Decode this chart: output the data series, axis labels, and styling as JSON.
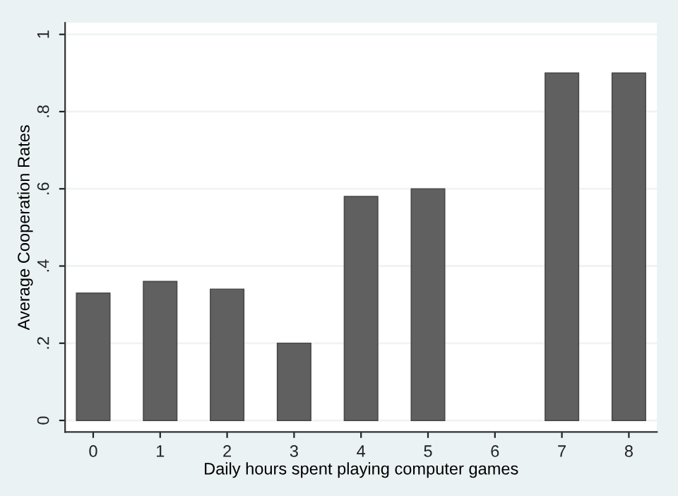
{
  "chart_data": {
    "type": "bar",
    "xlabel": "Daily hours spent playing computer games",
    "ylabel": "Average Cooperation Rates",
    "categories": [
      "0",
      "1",
      "2",
      "3",
      "4",
      "5",
      "6",
      "7",
      "8"
    ],
    "values": [
      0.33,
      0.36,
      0.34,
      0.2,
      0.58,
      0.6,
      null,
      0.9,
      0.9
    ],
    "color": "#606060",
    "ylim": [
      -0.03,
      1.03
    ],
    "yticks": [
      {
        "value": 0,
        "label": "0"
      },
      {
        "value": 0.2,
        "label": ".2"
      },
      {
        "value": 0.4,
        "label": ".4"
      },
      {
        "value": 0.6,
        "label": ".6"
      },
      {
        "value": 0.8,
        "label": ".8"
      },
      {
        "value": 1,
        "label": "1"
      }
    ],
    "grid": "y",
    "legend": false
  }
}
